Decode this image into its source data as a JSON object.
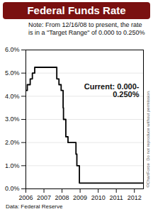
{
  "chart_data": {
    "type": "line",
    "title": "Federal Funds Rate",
    "note": "Note: From 12/16/08 to present, the rate is in a \"Target Range\" of 0.000 to 0.250%",
    "annotation": "Current: 0.000-0.250%",
    "credit": "©ChartForce  Do not reproduce without permission.",
    "source": "Data: Federal Reserve",
    "x": [
      2006.0,
      2006.08,
      2006.24,
      2006.36,
      2006.49,
      2007.71,
      2007.83,
      2007.95,
      2008.06,
      2008.08,
      2008.21,
      2008.33,
      2008.77,
      2008.82,
      2008.96,
      2012.5
    ],
    "values": [
      4.25,
      4.5,
      4.75,
      5.0,
      5.25,
      4.75,
      4.5,
      4.25,
      3.5,
      3.0,
      2.25,
      2.0,
      1.5,
      1.0,
      0.25,
      0.25
    ],
    "color": "#000000",
    "line_style": "step",
    "xlim": [
      2006,
      2012.5
    ],
    "xticks": [
      2006,
      2007,
      2008,
      2009,
      2010,
      2011,
      2012
    ],
    "ylim": [
      0,
      6
    ],
    "yticks": [
      {
        "value": 0,
        "label": "0.0%"
      },
      {
        "value": 1,
        "label": "1.0%"
      },
      {
        "value": 2,
        "label": "2.0%"
      },
      {
        "value": 3,
        "label": "3.0%"
      },
      {
        "value": 4,
        "label": "4.0%"
      },
      {
        "value": 5,
        "label": "5.0%"
      },
      {
        "value": 6,
        "label": "6.0%"
      }
    ],
    "grid": true
  }
}
